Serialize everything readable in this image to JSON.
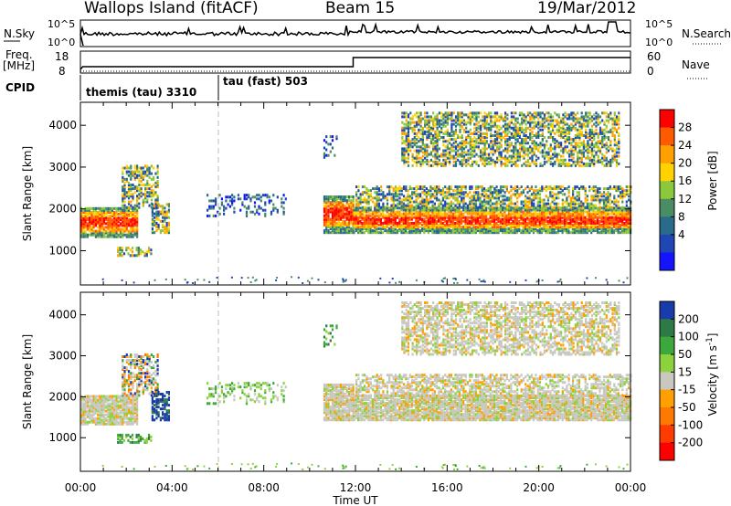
{
  "header": {
    "title": "Wallops Island (fitACF)",
    "beam": "Beam 15",
    "date": "19/Mar/2012"
  },
  "panels": {
    "nsky_label": "N.Sky",
    "nsearch_label": "N.Search",
    "nsky_ticks": [
      "10^5",
      "10^0"
    ],
    "nsearch_ticks": [
      "10^5",
      "10^0"
    ],
    "freq_label_top": "Freq.",
    "freq_label_bottom": "[MHz]",
    "freq_ticks": [
      "18",
      "8"
    ],
    "nave_label": "Nave",
    "nave_ticks": [
      "60",
      "0"
    ],
    "cpid_label": "CPID",
    "cpid_segments": [
      {
        "label": "themis (tau) 3310",
        "start_hour": 0
      },
      {
        "label": "tau (fast) 503",
        "start_hour": 6
      }
    ]
  },
  "chart_data": [
    {
      "type": "heatmap",
      "name": "power",
      "ylabel": "Slant Range [km]",
      "xlabel": "Time UT",
      "xlim": [
        0,
        24
      ],
      "ylim": [
        180,
        4550
      ],
      "x_ticks": [
        "00:00",
        "04:00",
        "08:00",
        "12:00",
        "16:00",
        "20:00",
        "00:00"
      ],
      "y_ticks": [
        1000,
        2000,
        3000,
        4000
      ],
      "colorbar": {
        "label": "Power [dB]",
        "ticks": [
          "28",
          "24",
          "20",
          "16",
          "12",
          "8",
          "4"
        ],
        "colors": [
          "#ff0000",
          "#ff5a00",
          "#ffa000",
          "#ffd200",
          "#8cc83c",
          "#4a8c64",
          "#2a6a8a",
          "#1e46b4",
          "#1414ff"
        ]
      }
    },
    {
      "type": "heatmap",
      "name": "velocity",
      "ylabel": "Slant Range [km]",
      "xlabel": "Time UT",
      "xlim": [
        0,
        24
      ],
      "ylim": [
        180,
        4550
      ],
      "x_ticks": [
        "00:00",
        "04:00",
        "08:00",
        "12:00",
        "16:00",
        "20:00",
        "00:00"
      ],
      "y_ticks": [
        1000,
        2000,
        3000,
        4000
      ],
      "colorbar": {
        "label": "Velocity [m s",
        "label_sup": "-1",
        "label_end": "]",
        "ticks": [
          "200",
          "100",
          "50",
          "15",
          "-15",
          "-50",
          "-100",
          "-200"
        ],
        "colors": [
          "#1a3caa",
          "#2e7a46",
          "#3ca83c",
          "#8cd23c",
          "#c8c8c0",
          "#ffa000",
          "#ff7800",
          "#ff3c00",
          "#ff0000"
        ]
      }
    }
  ],
  "footer": {
    "xlabel": "Time UT"
  }
}
